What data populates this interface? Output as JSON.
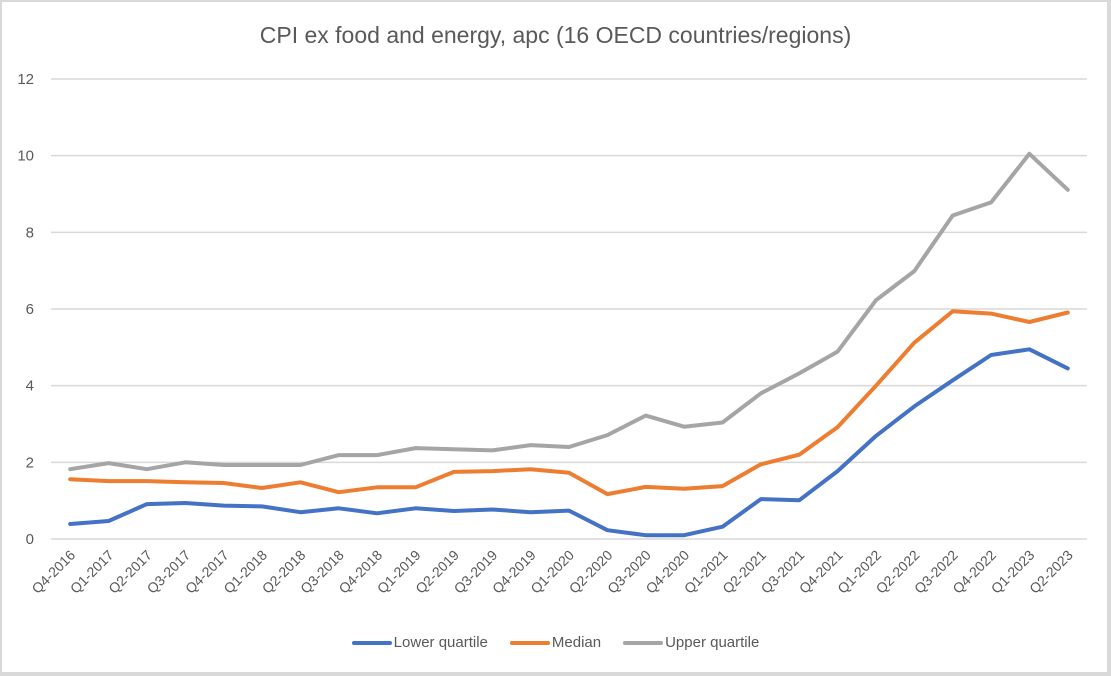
{
  "chart_data": {
    "type": "line",
    "title": "CPI ex food and energy, apc (16 OECD countries/regions)",
    "xlabel": "",
    "ylabel": "",
    "ylim": [
      0,
      12
    ],
    "yticks": [
      0,
      2,
      4,
      6,
      8,
      10,
      12
    ],
    "ytick_labels": [
      "0",
      "2",
      "4",
      "6",
      "8",
      "10",
      "12"
    ],
    "grid": true,
    "legend_position": "bottom",
    "categories": [
      "Q4-2016",
      "Q1-2017",
      "Q2-2017",
      "Q3-2017",
      "Q4-2017",
      "Q1-2018",
      "Q2-2018",
      "Q3-2018",
      "Q4-2018",
      "Q1-2019",
      "Q2-2019",
      "Q3-2019",
      "Q4-2019",
      "Q1-2020",
      "Q2-2020",
      "Q3-2020",
      "Q4-2020",
      "Q1-2021",
      "Q2-2021",
      "Q3-2021",
      "Q4-2021",
      "Q1-2022",
      "Q2-2022",
      "Q3-2022",
      "Q4-2022",
      "Q1-2023",
      "Q2-2023"
    ],
    "series": [
      {
        "name": "Lower quartile",
        "color": "#4472c4",
        "values": [
          0.39,
          0.47,
          0.91,
          0.94,
          0.87,
          0.85,
          0.7,
          0.8,
          0.67,
          0.8,
          0.73,
          0.77,
          0.7,
          0.74,
          0.23,
          0.1,
          0.1,
          0.32,
          1.04,
          1.01,
          1.77,
          2.69,
          3.46,
          4.14,
          4.8,
          4.95,
          4.45
        ]
      },
      {
        "name": "Median",
        "color": "#ed7d31",
        "values": [
          1.56,
          1.51,
          1.51,
          1.48,
          1.46,
          1.33,
          1.48,
          1.22,
          1.35,
          1.35,
          1.75,
          1.77,
          1.82,
          1.73,
          1.17,
          1.36,
          1.31,
          1.38,
          1.95,
          2.2,
          2.92,
          4.0,
          5.12,
          5.94,
          5.88,
          5.66,
          5.91
        ]
      },
      {
        "name": "Upper quartile",
        "color": "#a5a5a5",
        "values": [
          1.82,
          1.98,
          1.82,
          2.0,
          1.93,
          1.93,
          1.93,
          2.19,
          2.19,
          2.37,
          2.34,
          2.31,
          2.45,
          2.4,
          2.71,
          3.22,
          2.93,
          3.04,
          3.8,
          4.32,
          4.89,
          6.23,
          6.99,
          8.44,
          8.78,
          10.05,
          9.11
        ]
      }
    ]
  }
}
